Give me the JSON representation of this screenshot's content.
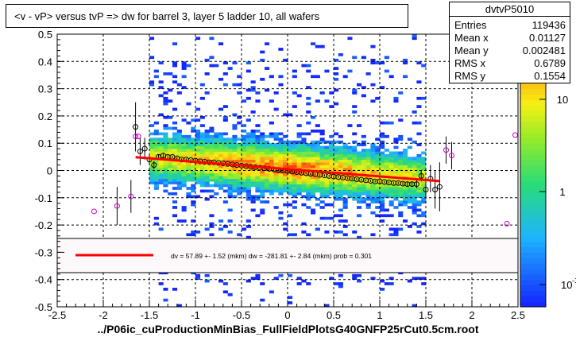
{
  "title": "<v - vP>       versus  tvP =>  dw for barrel 3, layer 5 ladder 10, all wafers",
  "stats": {
    "name": "dvtvP5010",
    "rows": [
      {
        "label": "Entries",
        "value": "119436"
      },
      {
        "label": "Mean x",
        "value": "0.01127"
      },
      {
        "label": "Mean y",
        "value": "0.002481"
      },
      {
        "label": "RMS x",
        "value": "0.6789"
      },
      {
        "label": "RMS y",
        "value": "0.1554"
      }
    ]
  },
  "xlabel_file": "../P06ic_cuProductionMinBias_FullFieldPlotsG40GNFP25rCut0.5cm.root",
  "fit_legend": "dv =    57.89 +-  1.52 (mkm) dw = -281.81 +-  2.84 (mkm) prob = 0.301",
  "colors": {
    "fit": "#ff0000",
    "profile_points": "#000000",
    "outlier_points": "#cc00cc"
  },
  "chart_data": {
    "type": "heatmap",
    "xlim": [
      -2.5,
      2.5
    ],
    "ylim": [
      -0.5,
      0.5
    ],
    "xticks": [
      -2.5,
      -2,
      -1.5,
      -1,
      -0.5,
      0,
      0.5,
      1,
      1.5,
      2,
      2.5
    ],
    "xtick_labels": [
      "-2.5",
      "-2",
      "-1.5",
      "-1",
      "-0.5",
      "0",
      "0.5",
      "1",
      "1.5",
      "2",
      "2.5"
    ],
    "yticks": [
      -0.5,
      -0.4,
      -0.3,
      -0.2,
      -0.1,
      0,
      0.1,
      0.2,
      0.3,
      0.4,
      0.5
    ],
    "ytick_labels": [
      "-0.5",
      "-0.4",
      "-0.3",
      "-0.2",
      "-0.1",
      "0",
      "0.1",
      "0.2",
      "0.3",
      "0.4",
      "0.5"
    ],
    "grid": true,
    "colorbar": {
      "scale": "log",
      "tick_labels": [
        "10",
        "1",
        "10-1"
      ]
    },
    "fit_line": {
      "x": [
        -1.65,
        1.65
      ],
      "y": [
        0.049,
        -0.039
      ]
    },
    "profile": {
      "x": [
        -1.65,
        -1.6,
        -1.55,
        -1.5,
        -1.45,
        -1.4,
        -1.35,
        -1.3,
        -1.25,
        -1.2,
        -1.15,
        -1.1,
        -1.05,
        -1.0,
        -0.95,
        -0.9,
        -0.85,
        -0.8,
        -0.75,
        -0.7,
        -0.65,
        -0.6,
        -0.55,
        -0.5,
        -0.45,
        -0.4,
        -0.35,
        -0.3,
        -0.25,
        -0.2,
        -0.15,
        -0.1,
        -0.05,
        0.0,
        0.05,
        0.1,
        0.15,
        0.2,
        0.25,
        0.3,
        0.35,
        0.4,
        0.45,
        0.5,
        0.55,
        0.6,
        0.65,
        0.7,
        0.75,
        0.8,
        0.85,
        0.9,
        0.95,
        1.0,
        1.05,
        1.1,
        1.15,
        1.2,
        1.25,
        1.3,
        1.35,
        1.4,
        1.45,
        1.5,
        1.55,
        1.6,
        1.65
      ],
      "y": [
        0.16,
        0.07,
        0.08,
        0.04,
        0.02,
        0.05,
        0.055,
        0.05,
        0.05,
        0.045,
        0.04,
        0.04,
        0.038,
        0.036,
        0.034,
        0.032,
        0.03,
        0.03,
        0.028,
        0.026,
        0.024,
        0.022,
        0.02,
        0.018,
        0.016,
        0.014,
        0.012,
        0.01,
        0.008,
        0.006,
        0.004,
        0.002,
        0.0,
        -0.002,
        -0.004,
        -0.006,
        -0.008,
        -0.01,
        -0.012,
        -0.014,
        -0.016,
        -0.018,
        -0.02,
        -0.022,
        -0.024,
        -0.026,
        -0.028,
        -0.03,
        -0.032,
        -0.034,
        -0.036,
        -0.038,
        -0.04,
        -0.04,
        -0.042,
        -0.044,
        -0.046,
        -0.046,
        -0.048,
        -0.05,
        -0.05,
        -0.05,
        -0.02,
        -0.07,
        -0.03,
        -0.07,
        -0.06
      ],
      "yerr": [
        0.09,
        0.05,
        0.04,
        0.02,
        0.015,
        0.01,
        0.008,
        0.006,
        0.005,
        0.005,
        0.004,
        0.004,
        0.004,
        0.004,
        0.004,
        0.004,
        0.004,
        0.004,
        0.004,
        0.004,
        0.004,
        0.004,
        0.004,
        0.004,
        0.004,
        0.004,
        0.004,
        0.004,
        0.004,
        0.004,
        0.004,
        0.004,
        0.004,
        0.004,
        0.004,
        0.004,
        0.004,
        0.004,
        0.004,
        0.004,
        0.004,
        0.004,
        0.004,
        0.004,
        0.004,
        0.004,
        0.004,
        0.004,
        0.004,
        0.004,
        0.004,
        0.004,
        0.004,
        0.004,
        0.004,
        0.004,
        0.005,
        0.005,
        0.006,
        0.008,
        0.01,
        0.015,
        0.02,
        0.03,
        0.05,
        0.07,
        0.09
      ]
    },
    "outliers": {
      "x": [
        -2.1,
        -1.85,
        -1.7,
        -1.65,
        -1.62,
        1.72,
        1.78,
        2.38,
        2.47
      ],
      "y": [
        -0.15,
        -0.13,
        -0.095,
        0.125,
        0.125,
        0.075,
        0.055,
        -0.195,
        0.13
      ],
      "yerr": [
        0,
        0.07,
        0.06,
        0,
        0,
        0.05,
        0.05,
        0,
        0
      ]
    }
  }
}
